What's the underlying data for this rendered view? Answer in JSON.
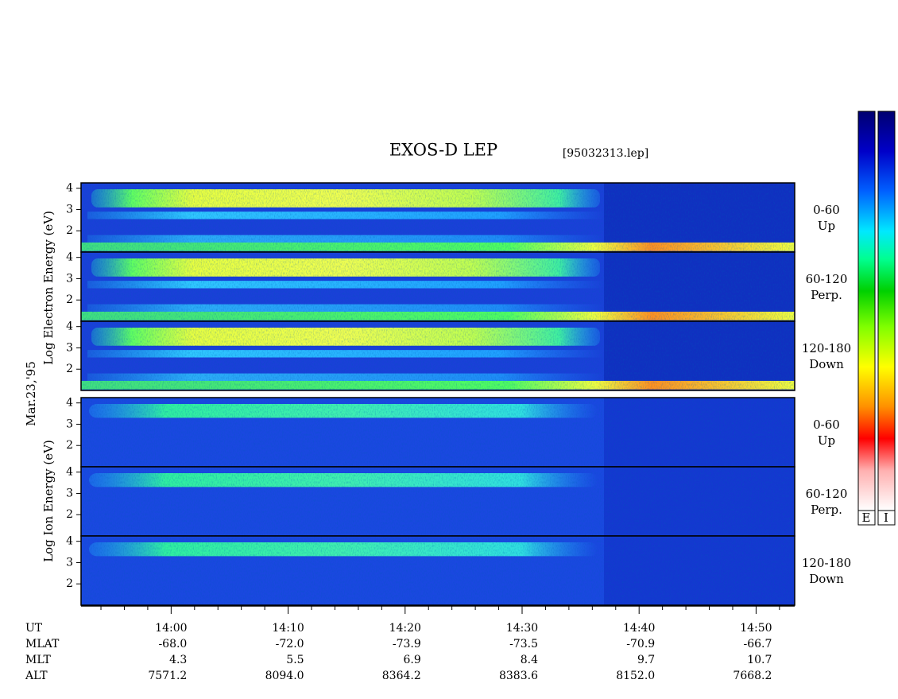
{
  "chart_data": {
    "type": "spectrogram",
    "title": "EXOS-D LEP",
    "subtitle": "[95032313.lep]",
    "date_label": "Mar.23,'95",
    "electron_ylabel": "Log Electron Energy (eV)",
    "ion_ylabel": "Log Ion Energy (eV)",
    "electron_panels": [
      [
        "0-60",
        "Up"
      ],
      [
        "60-120",
        "Perp."
      ],
      [
        "120-180",
        "Down"
      ]
    ],
    "ion_panels": [
      [
        "0-60",
        "Up"
      ],
      [
        "60-120",
        "Perp."
      ],
      [
        "120-180",
        "Down"
      ]
    ],
    "ylim": [
      1,
      4.25
    ],
    "yticks": [
      2,
      3,
      4
    ],
    "xlim": [
      832.3,
      893.3
    ],
    "xticks": [
      {
        "value": 840,
        "label": "14:00"
      },
      {
        "value": 850,
        "label": "14:10"
      },
      {
        "value": 860,
        "label": "14:20"
      },
      {
        "value": 870,
        "label": "14:30"
      },
      {
        "value": 880,
        "label": "14:40"
      },
      {
        "value": 890,
        "label": "14:50"
      }
    ],
    "xminorticks": [
      834,
      836,
      838,
      842,
      844,
      846,
      848,
      852,
      854,
      856,
      858,
      862,
      864,
      866,
      868,
      872,
      874,
      876,
      878,
      882,
      884,
      886,
      888,
      892
    ],
    "ephemeris": {
      "labels": [
        "UT",
        "MLAT",
        "MLT",
        "ALT"
      ],
      "rows": [
        [
          "-68.0",
          "-72.0",
          "-73.9",
          "-73.5",
          "-70.9",
          "-66.7"
        ],
        [
          "4.3",
          "5.5",
          "6.9",
          "8.4",
          "9.7",
          "10.7"
        ],
        [
          "7571.2",
          "8094.0",
          "8364.2",
          "8383.6",
          "8152.0",
          "7668.2"
        ]
      ]
    },
    "colorbar_labels": [
      "E",
      "I"
    ]
  }
}
